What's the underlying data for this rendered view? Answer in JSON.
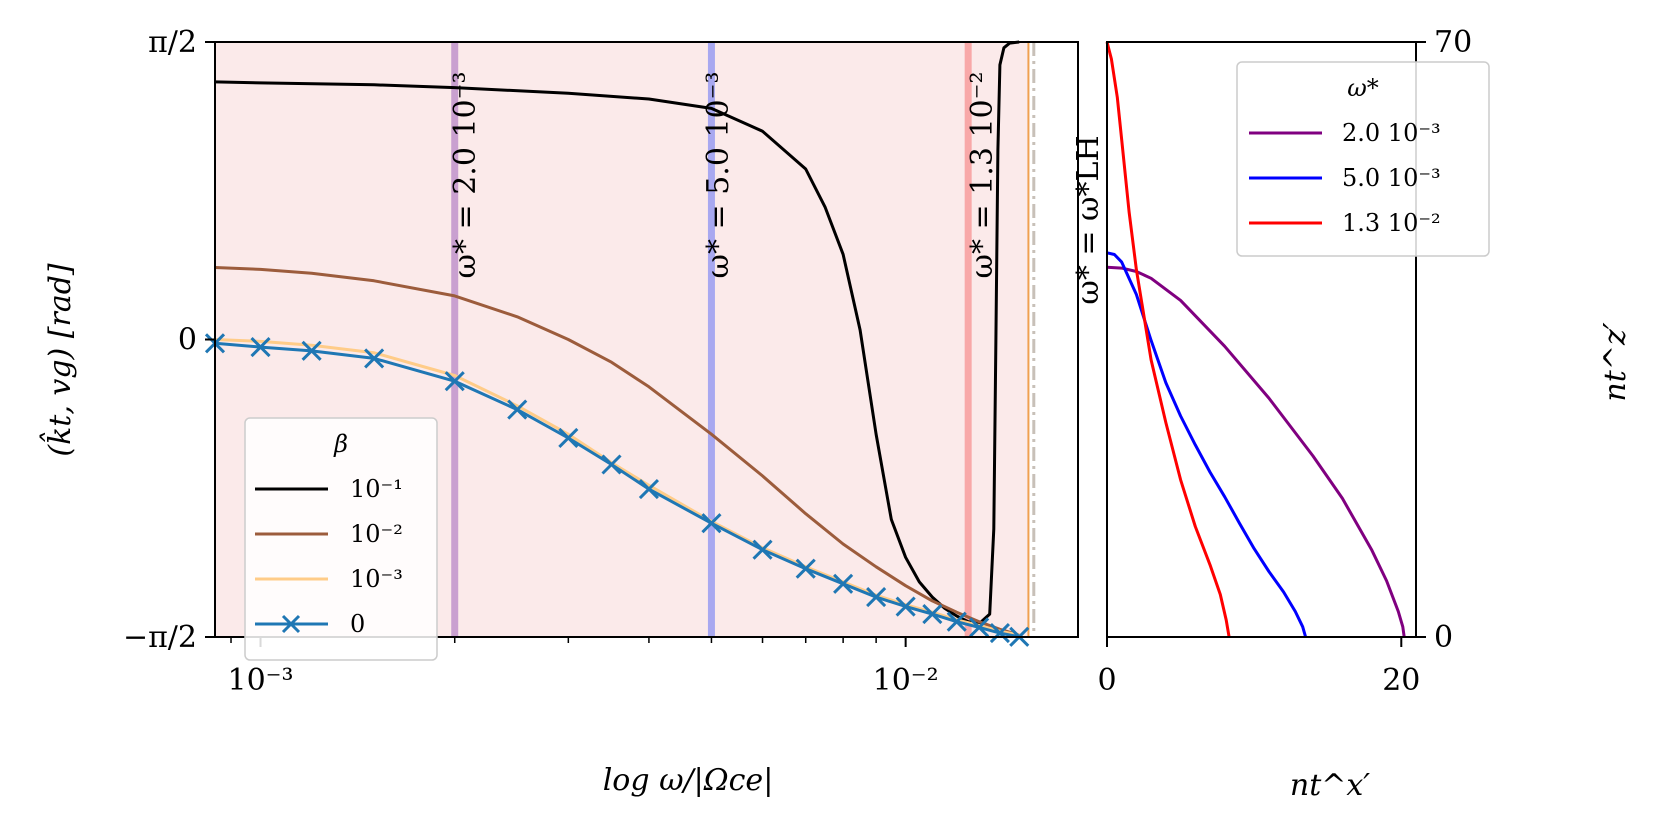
{
  "chart_data": [
    {
      "type": "line",
      "panel": "left",
      "xscale": "log",
      "xlim": [
        0.00085,
        0.0185
      ],
      "ylim": [
        -1.5708,
        1.5708
      ],
      "xlabel": "log ω/|Ωce|",
      "ylabel": "(k̂t, vg) [rad]",
      "xticks": [
        {
          "value": 0.001,
          "label": "10⁻³"
        },
        {
          "value": 0.01,
          "label": "10⁻²"
        }
      ],
      "yticks": [
        {
          "value": -1.5708,
          "label": "−π/2"
        },
        {
          "value": 0,
          "label": "0"
        },
        {
          "value": 1.5708,
          "label": "π/2"
        }
      ],
      "legend": {
        "title": "β",
        "position": "lower-left"
      },
      "shaded_region": {
        "x": [
          0.00085,
          0.0155
        ],
        "color": "#fbeaea"
      },
      "vertical_lines": [
        {
          "x": 0.002,
          "color": "#c9a0d0",
          "label": "ω* = 2.0 10⁻³"
        },
        {
          "x": 0.005,
          "color": "#a8a8f0",
          "label": "ω* = 5.0 10⁻³"
        },
        {
          "x": 0.0125,
          "color": "#f8a8a8",
          "label": "ω* = 1.3 10⁻²"
        },
        {
          "x": 0.0158,
          "color": "#c8c0b8",
          "style": "dashdot",
          "label": "ω* = ω*LH"
        }
      ],
      "series": [
        {
          "name": "10⁻¹",
          "color": "#000000",
          "x": [
            0.00085,
            0.001,
            0.0015,
            0.002,
            0.003,
            0.004,
            0.005,
            0.006,
            0.007,
            0.0075,
            0.008,
            0.0085,
            0.009,
            0.0095,
            0.01,
            0.0105,
            0.011,
            0.0115,
            0.012,
            0.0125,
            0.013,
            0.0135,
            0.0137,
            0.0138,
            0.0139,
            0.014,
            0.0142,
            0.0145,
            0.015
          ],
          "y": [
            1.36,
            1.355,
            1.345,
            1.33,
            1.3,
            1.27,
            1.22,
            1.1,
            0.9,
            0.7,
            0.45,
            0.05,
            -0.5,
            -0.95,
            -1.15,
            -1.28,
            -1.36,
            -1.42,
            -1.46,
            -1.49,
            -1.5,
            -1.45,
            -1.0,
            0.0,
            1.0,
            1.45,
            1.54,
            1.565,
            1.5708
          ]
        },
        {
          "name": "10⁻²",
          "color": "#9c5c3c",
          "x": [
            0.00085,
            0.001,
            0.0012,
            0.0015,
            0.002,
            0.0025,
            0.003,
            0.0035,
            0.004,
            0.005,
            0.006,
            0.007,
            0.008,
            0.009,
            0.01,
            0.011,
            0.012,
            0.013,
            0.014,
            0.015
          ],
          "y": [
            0.38,
            0.37,
            0.35,
            0.31,
            0.23,
            0.12,
            0.0,
            -0.12,
            -0.25,
            -0.5,
            -0.72,
            -0.92,
            -1.08,
            -1.2,
            -1.3,
            -1.38,
            -1.44,
            -1.49,
            -1.53,
            -1.56
          ]
        },
        {
          "name": "10⁻³",
          "color": "#ffcc88",
          "x": [
            0.00085,
            0.001,
            0.0012,
            0.0015,
            0.002,
            0.0025,
            0.003,
            0.0035,
            0.004,
            0.005,
            0.006,
            0.007,
            0.008,
            0.009,
            0.01,
            0.011,
            0.012,
            0.013,
            0.014,
            0.015
          ],
          "y": [
            0.0,
            -0.01,
            -0.03,
            -0.07,
            -0.19,
            -0.35,
            -0.5,
            -0.65,
            -0.77,
            -0.96,
            -1.1,
            -1.2,
            -1.28,
            -1.35,
            -1.4,
            -1.44,
            -1.48,
            -1.51,
            -1.54,
            -1.56
          ]
        },
        {
          "name": "0",
          "color": "#1f77b4",
          "marker": "x",
          "x": [
            0.00085,
            0.001,
            0.0012,
            0.0015,
            0.002,
            0.0025,
            0.003,
            0.0035,
            0.004,
            0.005,
            0.006,
            0.007,
            0.008,
            0.009,
            0.01,
            0.011,
            0.012,
            0.013,
            0.014,
            0.015
          ],
          "y": [
            -0.02,
            -0.04,
            -0.06,
            -0.1,
            -0.22,
            -0.37,
            -0.52,
            -0.66,
            -0.79,
            -0.97,
            -1.11,
            -1.21,
            -1.29,
            -1.36,
            -1.41,
            -1.45,
            -1.49,
            -1.52,
            -1.55,
            -1.57
          ]
        }
      ]
    },
    {
      "type": "line",
      "panel": "right",
      "xlim": [
        0,
        21
      ],
      "ylim": [
        0,
        70
      ],
      "xlabel": "nt^x′",
      "ylabel": "nt^z′",
      "xticks": [
        {
          "value": 0,
          "label": "0"
        },
        {
          "value": 20,
          "label": "20"
        }
      ],
      "yticks": [
        {
          "value": 0,
          "label": "0"
        },
        {
          "value": 70,
          "label": "70"
        }
      ],
      "legend": {
        "title": "ω*",
        "position": "upper-right"
      },
      "series": [
        {
          "name": "2.0 10⁻³",
          "color": "#800080",
          "x": [
            0,
            1,
            2,
            3,
            5,
            8,
            11,
            14,
            16,
            18,
            19,
            19.8,
            20.1,
            20.2
          ],
          "y": [
            43.5,
            43.4,
            43.0,
            42.2,
            39.6,
            34.2,
            28.1,
            21.3,
            16.3,
            10.2,
            6.6,
            3.0,
            1.2,
            0
          ]
        },
        {
          "name": "5.0 10⁻³",
          "color": "#0000ff",
          "x": [
            0,
            0.5,
            1,
            2,
            3,
            4,
            5,
            6,
            7,
            8,
            9,
            10,
            11,
            12,
            12.8,
            13.3,
            13.5
          ],
          "y": [
            45.2,
            45.0,
            44.1,
            40.3,
            34.9,
            29.9,
            26.0,
            22.6,
            19.4,
            16.5,
            13.4,
            10.4,
            7.7,
            5.3,
            3.0,
            1.2,
            0
          ]
        },
        {
          "name": "1.3 10⁻²",
          "color": "#ff0000",
          "x": [
            0,
            0.3,
            0.7,
            1,
            1.5,
            2,
            3,
            4,
            5,
            6,
            7,
            7.7,
            8.1,
            8.3
          ],
          "y": [
            70,
            68.0,
            63.5,
            58.5,
            50.0,
            43.2,
            32.6,
            25.2,
            18.5,
            13.0,
            8.5,
            5.0,
            2.0,
            0
          ]
        }
      ]
    }
  ]
}
